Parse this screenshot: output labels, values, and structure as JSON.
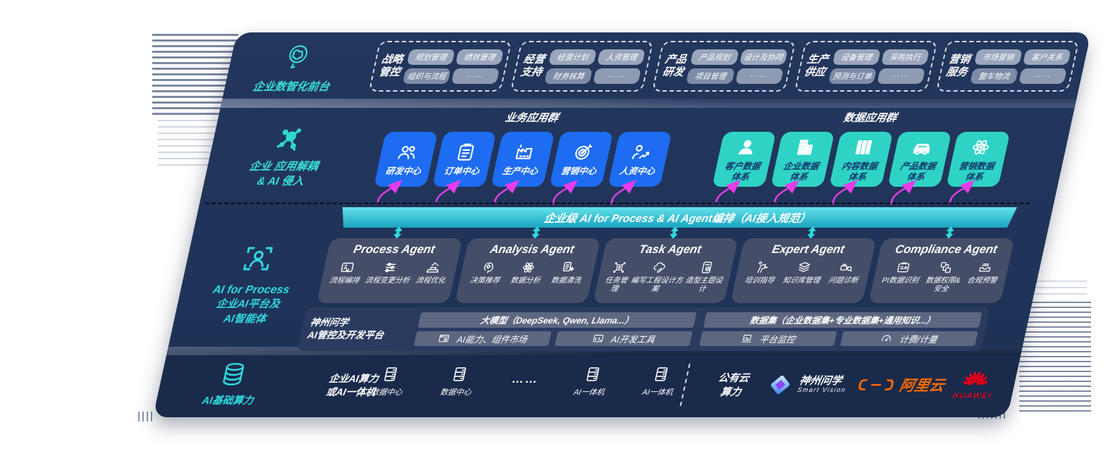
{
  "colors": {
    "panel": "#20345a",
    "accent_teal": "#2fd3c6",
    "accent_blue": "#1d6cf1",
    "magenta": "#e93ce9",
    "banner_teal": "#2bbcd2",
    "aliyun_orange": "#ff6a00",
    "huawei_red": "#d5001c"
  },
  "front_office": {
    "label": "企业数智化前台",
    "groups": [
      {
        "name_line1": "战略",
        "name_line2": "管控",
        "chips": [
          "规划管理",
          "绩效管理",
          "组织与流程",
          "……"
        ]
      },
      {
        "name_line1": "经营",
        "name_line2": "支持",
        "chips": [
          "经营计划",
          "人资管理",
          "财务核算",
          "……"
        ]
      },
      {
        "name_line1": "产品",
        "name_line2": "研发",
        "chips": [
          "产品规划",
          "设计及协同",
          "项目管理",
          "……"
        ]
      },
      {
        "name_line1": "生产",
        "name_line2": "供应",
        "chips": [
          "设备管理",
          "采购执行",
          "预测与订单",
          "……"
        ]
      },
      {
        "name_line1": "营销",
        "name_line2": "服务",
        "chips": [
          "市场营销",
          "客户关系",
          "整车物流",
          "……"
        ]
      }
    ]
  },
  "app_layer": {
    "decouple_label_line1": "企业 应用解耦",
    "decouple_label_line2": "& AI 侵入",
    "business_group_title": "业务应用群",
    "data_group_title": "数据应用群",
    "business_apps": [
      {
        "label": "研发中心",
        "icon": "team-icon"
      },
      {
        "label": "订单中心",
        "icon": "clipboard-icon"
      },
      {
        "label": "生产中心",
        "icon": "factory-icon"
      },
      {
        "label": "营销中心",
        "icon": "target-icon"
      },
      {
        "label": "人资中心",
        "icon": "person-chart-icon"
      }
    ],
    "data_apps": [
      {
        "label": "客户数据\n体系",
        "icon": "user-icon"
      },
      {
        "label": "企业数据\n体系",
        "icon": "building-icon"
      },
      {
        "label": "内容数据\n体系",
        "icon": "columns-icon"
      },
      {
        "label": "产品数据\n体系",
        "icon": "car-icon"
      },
      {
        "label": "营销数据\n体系",
        "icon": "atom-icon"
      }
    ]
  },
  "banner": {
    "text": "企业级 AI for Process & AI Agent编排（AI接入规范）"
  },
  "ai_layer": {
    "label_line1": "AI for Process",
    "label_line2": "企业AI平台及",
    "label_line3": "AI智能体",
    "agents": [
      {
        "title": "Process Agent",
        "items": [
          {
            "label": "流程编排",
            "icon": "flow-icon"
          },
          {
            "label": "流程变更分析",
            "icon": "sliders-icon"
          },
          {
            "label": "流程优化",
            "icon": "machine-icon"
          }
        ]
      },
      {
        "title": "Analysis Agent",
        "items": [
          {
            "label": "决策推荐",
            "icon": "decision-icon"
          },
          {
            "label": "数据分析",
            "icon": "atom-icon"
          },
          {
            "label": "数据清洗",
            "icon": "clean-icon"
          }
        ]
      },
      {
        "title": "Task Agent",
        "items": [
          {
            "label": "任务管理",
            "icon": "task-grid-icon"
          },
          {
            "label": "编写工程设计方案",
            "icon": "cloud-edit-icon"
          },
          {
            "label": "造型主题设计",
            "icon": "design-tablet-icon"
          }
        ]
      },
      {
        "title": "Expert Agent",
        "items": [
          {
            "label": "培训指导",
            "icon": "training-icon"
          },
          {
            "label": "知识库管理",
            "icon": "knowledge-icon"
          },
          {
            "label": "问题诊断",
            "icon": "diagnose-icon"
          }
        ]
      },
      {
        "title": "Compliance Agent",
        "items": [
          {
            "label": "PI数据识别",
            "icon": "pi-id-icon"
          },
          {
            "label": "数据权限&\n安全",
            "icon": "permission-icon"
          },
          {
            "label": "合规预警",
            "icon": "alert-icon"
          }
        ]
      }
    ],
    "platform": {
      "name_line1": "神州问学",
      "name_line2": "AI管控及开发平台",
      "model_bar": "大模型（DeepSeek, Qwen, Llama...）",
      "dataset_bar": "数据集（企业数据集+专业数据集+通用知识...）",
      "left_tools": [
        {
          "label": "AI能力、组件市场",
          "icon": "components-icon"
        },
        {
          "label": "AI开发工具",
          "icon": "devtools-icon"
        }
      ],
      "right_tools": [
        {
          "label": "平台监控",
          "icon": "monitor-icon"
        },
        {
          "label": "计费/计量",
          "icon": "meter-icon"
        }
      ]
    }
  },
  "infra": {
    "label": "AI基础算力",
    "corp_line1": "企业AI算力",
    "corp_line2": "或AI一体机",
    "nodes": [
      {
        "label": "数据中心",
        "icon": "server-icon"
      },
      {
        "label": "数据中心",
        "icon": "server-icon"
      },
      {
        "label": "……",
        "icon": "dots"
      },
      {
        "label": "AI一体机",
        "icon": "server-icon"
      },
      {
        "label": "AI一体机",
        "icon": "server-icon"
      }
    ],
    "cloud_line1": "公有云",
    "cloud_line2": "算力",
    "vendors": {
      "szwx_name": "神州问学",
      "szwx_sub": "Smart Vision",
      "aliyun": "阿里云",
      "huawei": "HUAWEI"
    }
  }
}
